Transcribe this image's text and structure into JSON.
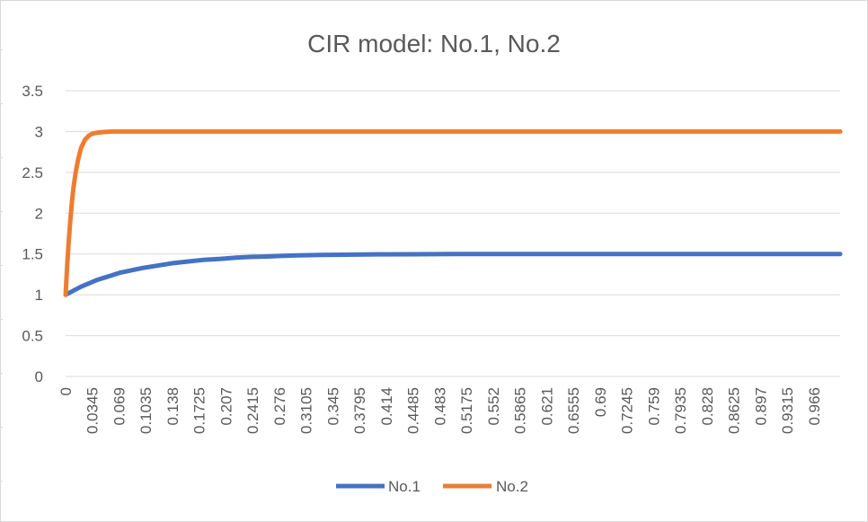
{
  "chart_data": {
    "type": "line",
    "title": "CIR model: No.1, No.2",
    "xlabel": "",
    "ylabel": "",
    "ylim": [
      0,
      3.5
    ],
    "y_ticks": [
      "0",
      "0.5",
      "1",
      "1.5",
      "2",
      "2.5",
      "3",
      "3.5"
    ],
    "x_tick_labels": [
      "0",
      "0.0345",
      "0.069",
      "0.1035",
      "0.138",
      "0.1725",
      "0.207",
      "0.2415",
      "0.276",
      "0.3105",
      "0.345",
      "0.3795",
      "0.414",
      "0.4485",
      "0.483",
      "0.5175",
      "0.552",
      "0.5865",
      "0.621",
      "0.6555",
      "0.69",
      "0.7245",
      "0.759",
      "0.7935",
      "0.828",
      "0.8625",
      "0.897",
      "0.9315",
      "0.966"
    ],
    "xlim": [
      0,
      0.9997
    ],
    "grid": true,
    "legend_position": "bottom",
    "series": [
      {
        "name": "No.1",
        "color": "#4472C4",
        "x": [
          0,
          0.01,
          0.02,
          0.03,
          0.04,
          0.05,
          0.06,
          0.07,
          0.08,
          0.09,
          0.1,
          0.12,
          0.14,
          0.16,
          0.18,
          0.2,
          0.22,
          0.24,
          0.26,
          0.28,
          0.3,
          0.33,
          0.36,
          0.4,
          0.45,
          0.5,
          0.6,
          0.7,
          0.8,
          0.9,
          0.9997
        ],
        "values": [
          1.0,
          1.05,
          1.1,
          1.14,
          1.18,
          1.21,
          1.24,
          1.27,
          1.29,
          1.31,
          1.33,
          1.36,
          1.39,
          1.41,
          1.43,
          1.44,
          1.455,
          1.465,
          1.47,
          1.478,
          1.483,
          1.488,
          1.492,
          1.495,
          1.497,
          1.499,
          1.5,
          1.5,
          1.5,
          1.5,
          1.5
        ]
      },
      {
        "name": "No.2",
        "color": "#ED7D31",
        "x": [
          0,
          0.002,
          0.004,
          0.006,
          0.008,
          0.01,
          0.013,
          0.016,
          0.02,
          0.025,
          0.03,
          0.035,
          0.04,
          0.05,
          0.06,
          0.07,
          0.1,
          0.2,
          0.4,
          0.6,
          0.8,
          0.9997
        ],
        "values": [
          1.0,
          1.35,
          1.65,
          1.9,
          2.12,
          2.3,
          2.5,
          2.65,
          2.8,
          2.9,
          2.95,
          2.975,
          2.985,
          2.995,
          3.0,
          3.0,
          3.0,
          3.0,
          3.0,
          3.0,
          3.0,
          3.0
        ]
      }
    ]
  }
}
